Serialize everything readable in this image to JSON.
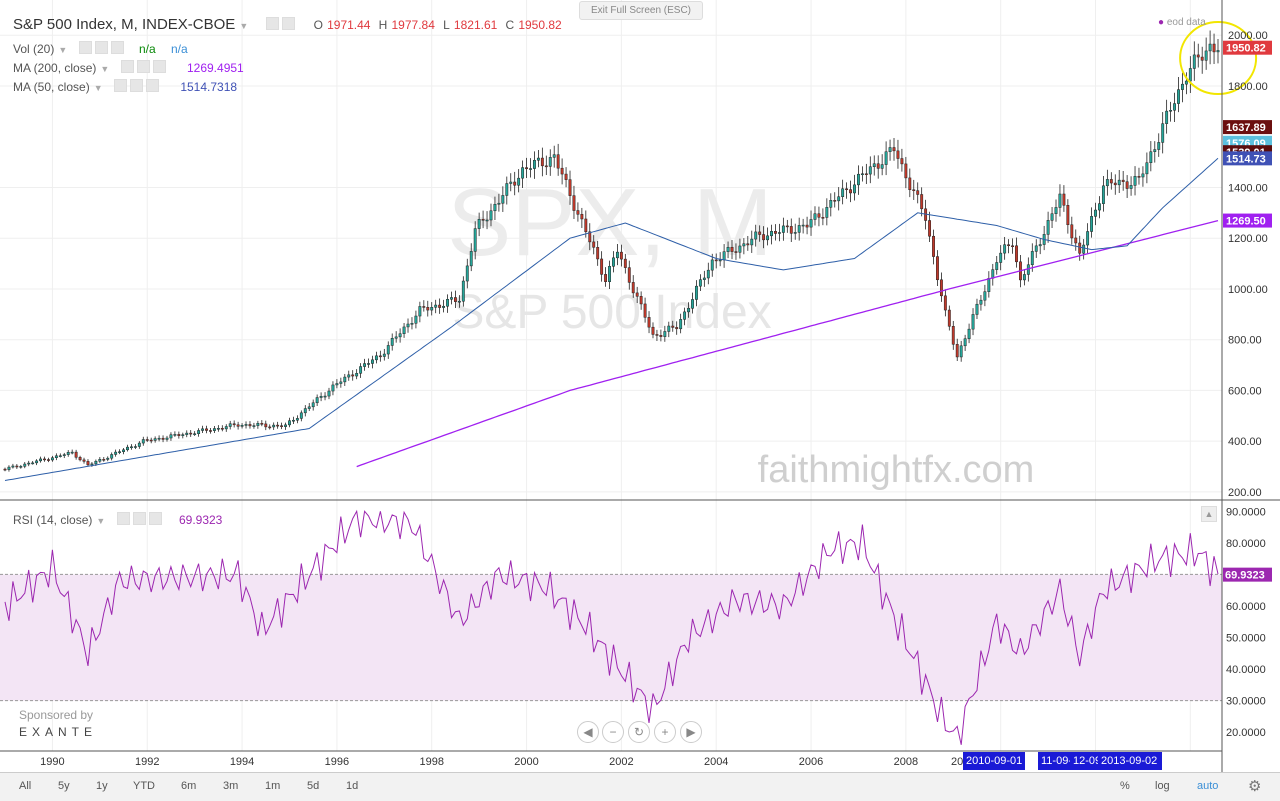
{
  "header": {
    "symbol": "S&P 500 Index, M, INDEX-CBOE",
    "o_label": "O",
    "o_value": "1971.44",
    "h_label": "H",
    "h_value": "1977.84",
    "l_label": "L",
    "l_value": "1821.61",
    "c_label": "C",
    "c_value": "1950.82",
    "exit_fullscreen": "Exit Full Screen (ESC)",
    "eod": "eod data"
  },
  "indicators": [
    {
      "label": "Vol (20)",
      "value1": "n/a",
      "value2": "n/a"
    },
    {
      "label": "MA (200, close)",
      "value": "1269.4951",
      "color": "#9c27b0"
    },
    {
      "label": "MA (50, close)",
      "value": "1514.7318",
      "color": "#3f51b5"
    }
  ],
  "rsi_legend": {
    "label": "RSI (14, close)",
    "value": "69.9323"
  },
  "watermark": {
    "line1": "SPX, M",
    "line2": "S&P 500 Index",
    "site": "faithmightfx.com"
  },
  "sponsor": {
    "line1": "Sponsored by",
    "line2": "EXANTE"
  },
  "price_axis_labels": [
    {
      "price": 2000,
      "text": "2000.00"
    },
    {
      "price": 1800,
      "text": "1800.00"
    },
    {
      "price": 1400,
      "text": "1400.00"
    },
    {
      "price": 1200,
      "text": "1200.00"
    },
    {
      "price": 1000,
      "text": "1000.00"
    },
    {
      "price": 800,
      "text": "800.00"
    },
    {
      "price": 600,
      "text": "600.00"
    },
    {
      "price": 400,
      "text": "400.00"
    },
    {
      "price": 200,
      "text": "200.00"
    }
  ],
  "price_tags": [
    {
      "price": 1950.82,
      "text": "1950.82",
      "color": "#e0393e"
    },
    {
      "price": 1637.89,
      "text": "1637.89",
      "color": "#6b0f0f"
    },
    {
      "price": 1576.09,
      "text": "1576.09",
      "color": "#5bc0de"
    },
    {
      "price": 1539.01,
      "text": "1539.01",
      "color": "#5a0d0d"
    },
    {
      "price": 1514.73,
      "text": "1514.73",
      "color": "#3f51b5"
    },
    {
      "price": 1269.5,
      "text": "1269.50",
      "color": "#a020f0"
    }
  ],
  "rsi_axis_labels": [
    "90.0000",
    "80.0000",
    "60.0000",
    "50.0000",
    "40.0000",
    "30.0000",
    "20.0000"
  ],
  "rsi_tag": {
    "value": 69.9323,
    "text": "69.9323",
    "color": "#9c27b0"
  },
  "time_axis_labels": [
    "1990",
    "1992",
    "1994",
    "1996",
    "1998",
    "2000",
    "2002",
    "2004",
    "2006",
    "2008",
    "20",
    "2010-09-01",
    "11-09-01",
    "12-09-",
    "2013-09-02"
  ],
  "bottom_bar": {
    "ranges": [
      "All",
      "5y",
      "1y",
      "YTD",
      "6m",
      "3m",
      "1m",
      "5d",
      "1d"
    ],
    "percent": "%",
    "log": "log",
    "auto": "auto"
  },
  "nav_buttons": [
    "◀",
    "−",
    "↻",
    "+",
    "▶"
  ],
  "colors": {
    "up": "#26a69a",
    "down": "#c0392b",
    "ma200": "#a020f0",
    "ma50": "#2e5fa8",
    "rsi": "#9c27b0",
    "rsi_band": "#f3e5f5",
    "highlight": "#f2e600"
  },
  "chart_data": {
    "type": "candlestick",
    "title": "S&P 500 Index, M, INDEX-CBOE",
    "ylim": [
      180,
      2060
    ],
    "x_range": [
      "1989-01",
      "2014-08"
    ],
    "close_keypoints": [
      [
        "1989-01",
        290
      ],
      [
        "1990-06",
        355
      ],
      [
        "1990-10",
        305
      ],
      [
        "1991-12",
        400
      ],
      [
        "1993-12",
        465
      ],
      [
        "1994-12",
        460
      ],
      [
        "1995-12",
        615
      ],
      [
        "1996-12",
        740
      ],
      [
        "1997-10",
        915
      ],
      [
        "1998-08",
        960
      ],
      [
        "1998-12",
        1230
      ],
      [
        "1999-12",
        1470
      ],
      [
        "2000-08",
        1520
      ],
      [
        "2001-09",
        1040
      ],
      [
        "2001-12",
        1150
      ],
      [
        "2002-09",
        815
      ],
      [
        "2003-03",
        850
      ],
      [
        "2003-12",
        1110
      ],
      [
        "2004-12",
        1210
      ],
      [
        "2005-12",
        1250
      ],
      [
        "2006-12",
        1420
      ],
      [
        "2007-10",
        1550
      ],
      [
        "2008-06",
        1280
      ],
      [
        "2008-11",
        900
      ],
      [
        "2009-02",
        735
      ],
      [
        "2009-12",
        1115
      ],
      [
        "2010-04",
        1190
      ],
      [
        "2010-06",
        1030
      ],
      [
        "2011-04",
        1360
      ],
      [
        "2011-09",
        1130
      ],
      [
        "2012-03",
        1410
      ],
      [
        "2012-12",
        1426
      ],
      [
        "2013-12",
        1848
      ],
      [
        "2014-06",
        1960
      ],
      [
        "2014-08",
        1951
      ]
    ],
    "ma200_keypoints": [
      [
        "1996-06",
        300
      ],
      [
        "2000-12",
        600
      ],
      [
        "2008-12",
        1000
      ],
      [
        "2014-08",
        1269.5
      ]
    ],
    "ma50_keypoints": [
      [
        "1989-01",
        245
      ],
      [
        "1995-06",
        450
      ],
      [
        "1998-06",
        850
      ],
      [
        "2000-12",
        1200
      ],
      [
        "2002-02",
        1260
      ],
      [
        "2004-01",
        1120
      ],
      [
        "2005-06",
        1075
      ],
      [
        "2006-12",
        1120
      ],
      [
        "2008-04",
        1300
      ],
      [
        "2009-12",
        1250
      ],
      [
        "2010-12",
        1195
      ],
      [
        "2011-12",
        1155
      ],
      [
        "2012-09",
        1170
      ],
      [
        "2013-06",
        1320
      ],
      [
        "2014-08",
        1514.73
      ]
    ],
    "rsi_ylim": [
      15,
      92
    ],
    "rsi_band": [
      30,
      70
    ],
    "rsi_keypoints": [
      [
        "1989-01",
        60
      ],
      [
        "1990-01",
        72
      ],
      [
        "1990-10",
        45
      ],
      [
        "1991-06",
        68
      ],
      [
        "1993-12",
        70
      ],
      [
        "1994-06",
        52
      ],
      [
        "1996-06",
        88
      ],
      [
        "1997-08",
        86
      ],
      [
        "1998-08",
        55
      ],
      [
        "1999-06",
        70
      ],
      [
        "2000-06",
        66
      ],
      [
        "2001-03",
        55
      ],
      [
        "2002-09",
        27
      ],
      [
        "2003-06",
        50
      ],
      [
        "2004-06",
        62
      ],
      [
        "2005-06",
        60
      ],
      [
        "2006-06",
        78
      ],
      [
        "2007-02",
        80
      ],
      [
        "2007-08",
        62
      ],
      [
        "2008-10",
        25
      ],
      [
        "2009-02",
        18
      ],
      [
        "2009-12",
        55
      ],
      [
        "2010-06",
        45
      ],
      [
        "2011-04",
        65
      ],
      [
        "2011-09",
        44
      ],
      [
        "2012-03",
        65
      ],
      [
        "2013-05",
        75
      ],
      [
        "2014-03",
        77
      ],
      [
        "2014-08",
        69.93
      ]
    ],
    "highlight": {
      "date": "2014-06",
      "price": 1910,
      "label": "circle around recent highs"
    }
  }
}
